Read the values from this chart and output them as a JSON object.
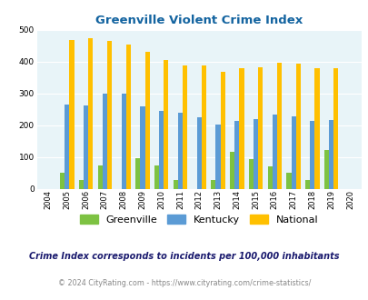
{
  "title": "Greenville Violent Crime Index",
  "years": [
    2004,
    2005,
    2006,
    2007,
    2008,
    2009,
    2010,
    2011,
    2012,
    2013,
    2014,
    2015,
    2016,
    2017,
    2018,
    2019,
    2020
  ],
  "greenville": [
    0,
    50,
    28,
    75,
    0,
    97,
    75,
    27,
    0,
    27,
    117,
    95,
    70,
    50,
    27,
    122,
    0
  ],
  "kentucky": [
    0,
    267,
    264,
    299,
    299,
    260,
    245,
    240,
    225,
    203,
    215,
    221,
    235,
    228,
    215,
    217,
    0
  ],
  "national": [
    0,
    469,
    474,
    467,
    455,
    432,
    405,
    388,
    388,
    368,
    379,
    384,
    398,
    395,
    381,
    380,
    0
  ],
  "bar_width": 0.25,
  "colors": {
    "greenville": "#7dc242",
    "kentucky": "#5b9bd5",
    "national": "#ffc000"
  },
  "bg_color": "#e8f4f8",
  "ylim": [
    0,
    500
  ],
  "yticks": [
    0,
    100,
    200,
    300,
    400,
    500
  ],
  "title_color": "#1464a0",
  "subtitle": "Crime Index corresponds to incidents per 100,000 inhabitants",
  "footer": "© 2024 CityRating.com - https://www.cityrating.com/crime-statistics/",
  "subtitle_color": "#1a1a6e",
  "footer_color": "#888888",
  "legend_labels": [
    "Greenville",
    "Kentucky",
    "National"
  ],
  "grid_color": "#ffffff"
}
